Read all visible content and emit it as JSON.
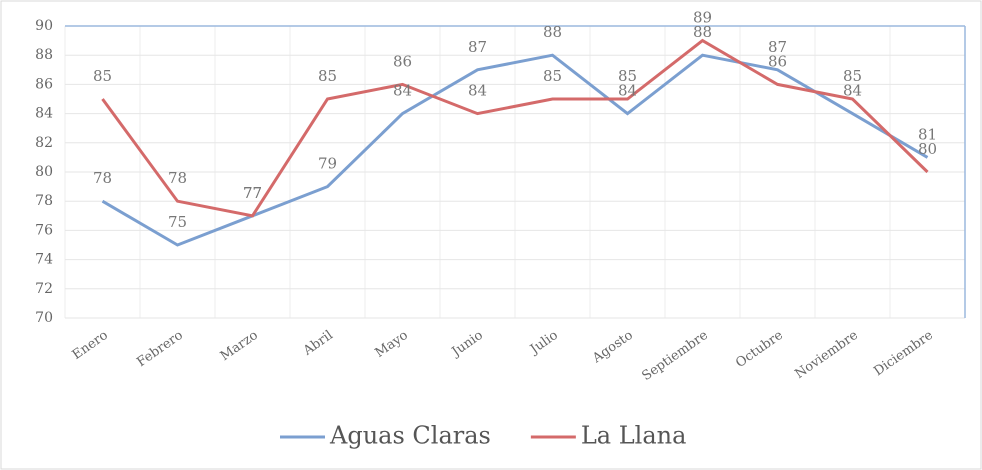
{
  "chart_data": {
    "type": "line",
    "categories": [
      "Enero",
      "Febrero",
      "Marzo",
      "Abril",
      "Mayo",
      "Junio",
      "Julio",
      "Agosto",
      "Septiembre",
      "Octubre",
      "Noviembre",
      "Diciembre"
    ],
    "series": [
      {
        "name": "Aguas Claras",
        "color": "#7b9fd0",
        "values": [
          78,
          75,
          77,
          79,
          84,
          87,
          88,
          84,
          88,
          87,
          84,
          81
        ]
      },
      {
        "name": "La Llana",
        "color": "#d46a6a",
        "values": [
          85,
          78,
          77,
          85,
          86,
          84,
          85,
          85,
          89,
          86,
          85,
          80
        ]
      }
    ],
    "ylim": [
      70,
      90
    ],
    "yticks": [
      70,
      72,
      74,
      76,
      78,
      80,
      82,
      84,
      86,
      88,
      90
    ],
    "grid": true,
    "legend": "bottom"
  }
}
